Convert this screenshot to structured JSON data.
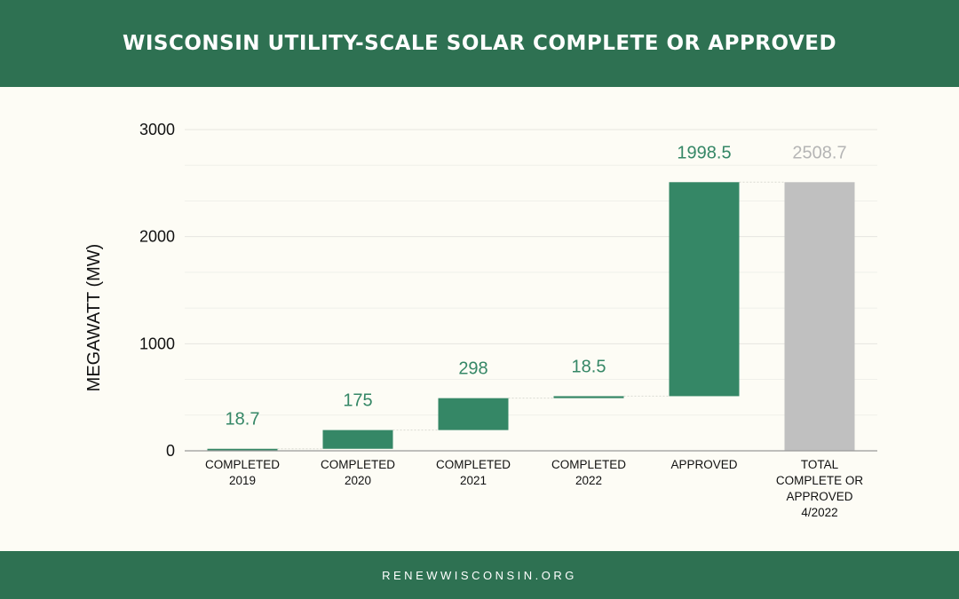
{
  "title": "WISCONSIN UTILITY-SCALE SOLAR COMPLETE OR APPROVED",
  "footer": "RENEWWISCONSIN.ORG",
  "colors": {
    "header_bg": "#2e7152",
    "bar_increment": "#358766",
    "bar_total": "#c0c0c0",
    "label_increment": "#358766",
    "label_total": "#b5b5b5",
    "background": "#fdfcf5"
  },
  "chart_data": {
    "type": "bar",
    "subtype": "waterfall",
    "title": "WISCONSIN UTILITY-SCALE SOLAR COMPLETE OR APPROVED",
    "xlabel": "",
    "ylabel": "MEGAWATT (MW)",
    "ylim": [
      0,
      3000
    ],
    "yticks": [
      0,
      1000,
      2000,
      3000
    ],
    "grid": true,
    "categories": [
      [
        "COMPLETED",
        "2019"
      ],
      [
        "COMPLETED",
        "2020"
      ],
      [
        "COMPLETED",
        "2021"
      ],
      [
        "COMPLETED",
        "2022"
      ],
      [
        "APPROVED"
      ],
      [
        "TOTAL",
        "COMPLETE OR",
        "APPROVED",
        "4/2022"
      ]
    ],
    "values": [
      18.7,
      175,
      298,
      18.5,
      1998.5,
      2508.7
    ],
    "labels": [
      "18.7",
      "175",
      "298",
      "18.5",
      "1998.5",
      "2508.7"
    ],
    "is_total": [
      false,
      false,
      false,
      false,
      false,
      true
    ]
  }
}
